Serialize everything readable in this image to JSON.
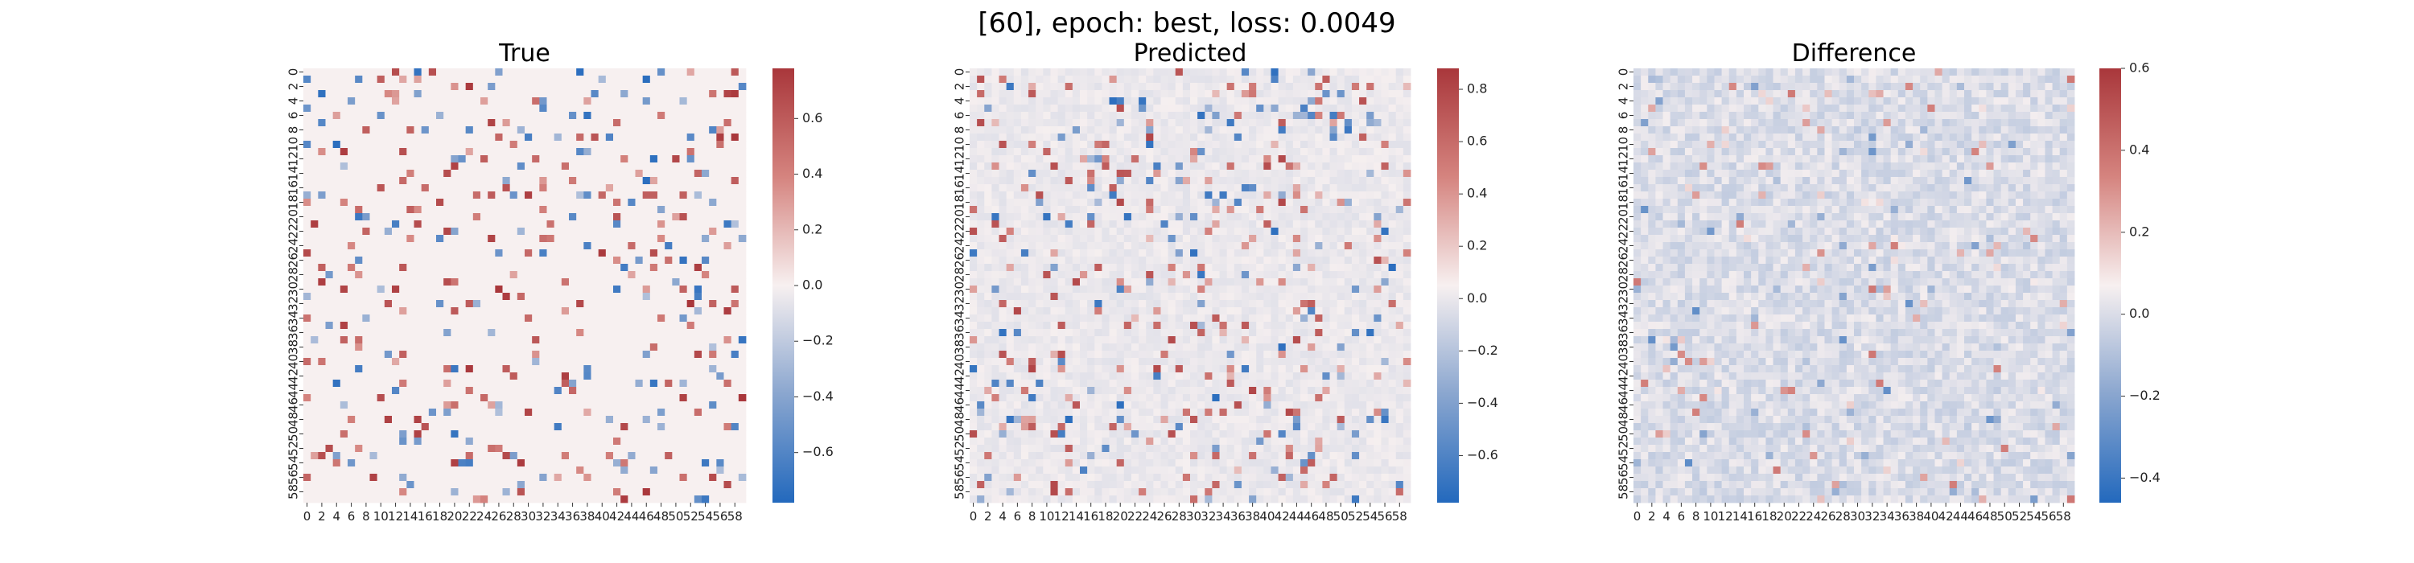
{
  "figure": {
    "suptitle": "[60], epoch: best, loss: 0.0049"
  },
  "chart_data": [
    {
      "type": "heatmap",
      "title": "True",
      "rows": 60,
      "cols": 60,
      "x_tick_labels": [
        "0",
        "2",
        "4",
        "6",
        "8",
        "10",
        "12",
        "14",
        "16",
        "18",
        "20",
        "22",
        "24",
        "26",
        "28",
        "30",
        "32",
        "34",
        "36",
        "38",
        "40",
        "42",
        "44",
        "46",
        "48",
        "50",
        "52",
        "54",
        "56",
        "58"
      ],
      "y_tick_labels": [
        "0",
        "2",
        "4",
        "6",
        "8",
        "10",
        "12",
        "14",
        "16",
        "18",
        "20",
        "22",
        "24",
        "26",
        "28",
        "30",
        "32",
        "34",
        "36",
        "38",
        "40",
        "42",
        "44",
        "46",
        "48",
        "50",
        "52",
        "54",
        "56",
        "58"
      ],
      "vmin": -0.78,
      "vmax": 0.78,
      "colormap": "vlag",
      "colorbar_ticks": [
        0.6,
        0.4,
        0.2,
        0.0,
        -0.2,
        -0.4,
        -0.6
      ],
      "colorbar_tick_labels": [
        "0.6",
        "0.4",
        "0.2",
        "0.0",
        "−0.2",
        "−0.4",
        "−0.6"
      ],
      "sparse_density": 0.1
    },
    {
      "type": "heatmap",
      "title": "Predicted",
      "rows": 60,
      "cols": 60,
      "x_tick_labels": [
        "0",
        "2",
        "4",
        "6",
        "8",
        "10",
        "12",
        "14",
        "16",
        "18",
        "20",
        "22",
        "24",
        "26",
        "28",
        "30",
        "32",
        "34",
        "36",
        "38",
        "40",
        "42",
        "44",
        "46",
        "48",
        "50",
        "52",
        "54",
        "56",
        "58"
      ],
      "y_tick_labels": [
        "0",
        "2",
        "4",
        "6",
        "8",
        "10",
        "12",
        "14",
        "16",
        "18",
        "20",
        "22",
        "24",
        "26",
        "28",
        "30",
        "32",
        "34",
        "36",
        "38",
        "40",
        "42",
        "44",
        "46",
        "48",
        "50",
        "52",
        "54",
        "56",
        "58"
      ],
      "vmin": -0.78,
      "vmax": 0.88,
      "colormap": "vlag",
      "colorbar_ticks": [
        0.8,
        0.6,
        0.4,
        0.2,
        0.0,
        -0.2,
        -0.4,
        -0.6
      ],
      "colorbar_tick_labels": [
        "0.8",
        "0.6",
        "0.4",
        "0.2",
        "0.0",
        "−0.2",
        "−0.4",
        "−0.6"
      ],
      "sparse_density": 0.1
    },
    {
      "type": "heatmap",
      "title": "Difference",
      "rows": 60,
      "cols": 60,
      "x_tick_labels": [
        "0",
        "2",
        "4",
        "6",
        "8",
        "10",
        "12",
        "14",
        "16",
        "18",
        "20",
        "22",
        "24",
        "26",
        "28",
        "30",
        "32",
        "34",
        "36",
        "38",
        "40",
        "42",
        "44",
        "46",
        "48",
        "50",
        "52",
        "54",
        "56",
        "58"
      ],
      "y_tick_labels": [
        "0",
        "2",
        "4",
        "6",
        "8",
        "10",
        "12",
        "14",
        "16",
        "18",
        "20",
        "22",
        "24",
        "26",
        "28",
        "30",
        "32",
        "34",
        "36",
        "38",
        "40",
        "42",
        "44",
        "46",
        "48",
        "50",
        "52",
        "54",
        "56",
        "58"
      ],
      "vmin": -0.46,
      "vmax": 0.6,
      "colormap": "vlag",
      "colorbar_ticks": [
        0.6,
        0.4,
        0.2,
        0.0,
        -0.2,
        -0.4
      ],
      "colorbar_tick_labels": [
        "0.6",
        "0.4",
        "0.2",
        "0.0",
        "−0.2",
        "−0.4"
      ],
      "sparse_density": 0.06
    }
  ]
}
